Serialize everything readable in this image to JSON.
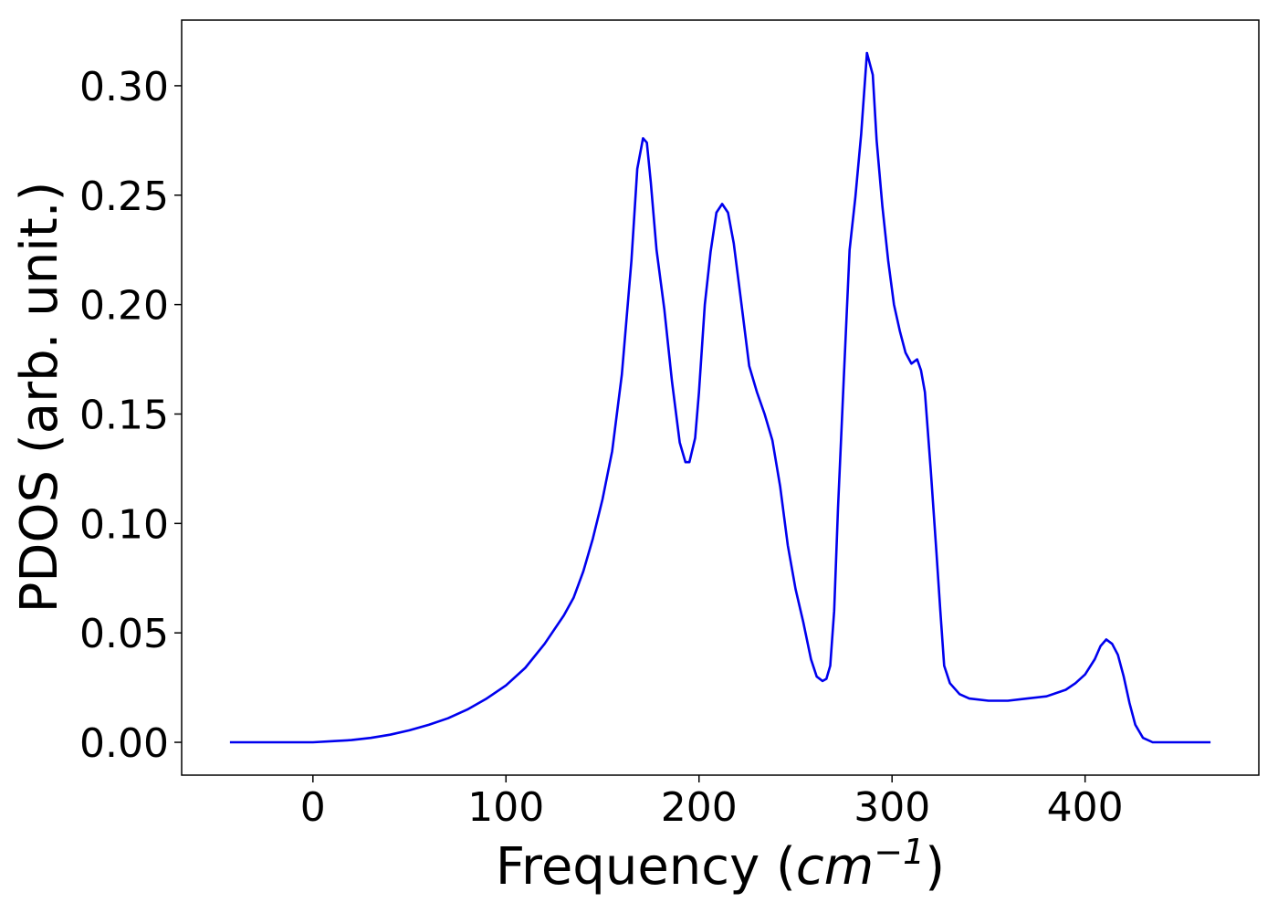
{
  "chart_data": {
    "type": "line",
    "xlabel": "Frequency (",
    "xlabel_unit_base": "cm",
    "xlabel_unit_exp": "−1",
    "xlabel_close": ")",
    "ylabel": "PDOS (arb. unit.)",
    "xlim": [
      -68,
      490
    ],
    "ylim": [
      -0.015,
      0.33
    ],
    "grid": false,
    "x_ticks": [
      0,
      100,
      200,
      300,
      400
    ],
    "y_ticks": [
      0.0,
      0.05,
      0.1,
      0.15,
      0.2,
      0.25,
      0.3
    ],
    "x_tick_labels": [
      "0",
      "100",
      "200",
      "300",
      "400"
    ],
    "y_tick_labels": [
      "0.00",
      "0.05",
      "0.10",
      "0.15",
      "0.20",
      "0.25",
      "0.30"
    ],
    "series": [
      {
        "color": "#0000ee",
        "x": [
          -43,
          0,
          10,
          20,
          30,
          40,
          50,
          60,
          70,
          80,
          90,
          100,
          110,
          120,
          130,
          135,
          140,
          145,
          150,
          155,
          160,
          165,
          168,
          171,
          173,
          175,
          178,
          182,
          186,
          190,
          193,
          195,
          198,
          200,
          203,
          206,
          209,
          212,
          215,
          218,
          222,
          226,
          230,
          234,
          238,
          242,
          246,
          250,
          254,
          258,
          261,
          264,
          266,
          268,
          270,
          272,
          275,
          278,
          281,
          284,
          287,
          290,
          292,
          295,
          298,
          301,
          304,
          307,
          310,
          313,
          315,
          317,
          320,
          323,
          325,
          327,
          330,
          335,
          340,
          350,
          360,
          370,
          380,
          390,
          395,
          400,
          405,
          408,
          411,
          414,
          417,
          420,
          423,
          426,
          430,
          435,
          465
        ],
        "y": [
          0.0,
          0.0,
          0.0005,
          0.001,
          0.002,
          0.0035,
          0.0055,
          0.008,
          0.011,
          0.015,
          0.02,
          0.026,
          0.034,
          0.045,
          0.058,
          0.066,
          0.078,
          0.093,
          0.111,
          0.133,
          0.168,
          0.22,
          0.262,
          0.276,
          0.274,
          0.256,
          0.225,
          0.198,
          0.165,
          0.137,
          0.128,
          0.128,
          0.139,
          0.16,
          0.2,
          0.224,
          0.242,
          0.246,
          0.242,
          0.228,
          0.2,
          0.172,
          0.16,
          0.15,
          0.138,
          0.117,
          0.09,
          0.07,
          0.055,
          0.038,
          0.03,
          0.028,
          0.029,
          0.035,
          0.06,
          0.107,
          0.166,
          0.225,
          0.249,
          0.278,
          0.315,
          0.305,
          0.275,
          0.245,
          0.22,
          0.2,
          0.188,
          0.178,
          0.173,
          0.175,
          0.17,
          0.16,
          0.125,
          0.087,
          0.06,
          0.035,
          0.027,
          0.022,
          0.02,
          0.019,
          0.019,
          0.02,
          0.021,
          0.024,
          0.027,
          0.031,
          0.038,
          0.044,
          0.047,
          0.045,
          0.04,
          0.03,
          0.018,
          0.008,
          0.002,
          0.0,
          0.0
        ]
      }
    ]
  }
}
